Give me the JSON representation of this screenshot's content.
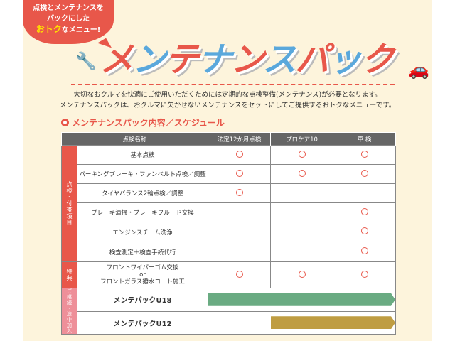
{
  "banner": {
    "bubble_line1": "点検とメンテナンスを",
    "bubble_line2": "パックにした",
    "bubble_highlight": "おトク",
    "bubble_line3": "なメニュー!"
  },
  "title": {
    "chars": [
      "メ",
      "ン",
      "テ",
      "ナ",
      "ン",
      "ス",
      "パ",
      "ッ",
      "ク"
    ],
    "colors": [
      "r",
      "b",
      "r",
      "b",
      "r",
      "b",
      "r",
      "b",
      "r"
    ],
    "icons": [
      "wrench-icon",
      "car-icon"
    ]
  },
  "intro": [
    "大切なおクルマを快適にご使用いただくためには定期的な点検整備(メンテナンス)が必要となります。",
    "メンテナンスパックは、おクルマに欠かせないメンテナンスをセットにしてご提供するおトクなメニューです。"
  ],
  "section_title": "メンテナンスパック内容／スケジュール",
  "table": {
    "headers": [
      "点検名称",
      "法定12か月点検",
      "プロケア10",
      "車 検"
    ],
    "groups": {
      "inspection": "点検・付帯項目",
      "bonus": "特典",
      "join": "ご継続・途中加入"
    },
    "rows": [
      {
        "name": "基本点検",
        "marks": [
          true,
          true,
          true
        ]
      },
      {
        "name": "パーキングブレーキ・ファンベルト点検／調整",
        "marks": [
          true,
          true,
          true
        ]
      },
      {
        "name": "タイヤバランス2輪点検／調整",
        "marks": [
          true,
          false,
          false
        ]
      },
      {
        "name": "ブレーキ清掃・ブレーキフルード交換",
        "marks": [
          false,
          false,
          true
        ]
      },
      {
        "name": "エンジンスチーム洗浄",
        "marks": [
          false,
          false,
          true
        ]
      },
      {
        "name": "検査測定＋検査手続代行",
        "marks": [
          false,
          false,
          true
        ]
      }
    ],
    "bonus_row": {
      "line1": "フロントワイパーゴム交換",
      "or": "or",
      "line2": "フロントガラス撥水コート施工",
      "marks": [
        true,
        true,
        true
      ]
    },
    "packs": [
      {
        "name": "メンテパックU18",
        "start_col": 1,
        "color": "#6aab82"
      },
      {
        "name": "メンテパックU12",
        "start_col": 2,
        "color": "#bf9d42"
      }
    ]
  }
}
